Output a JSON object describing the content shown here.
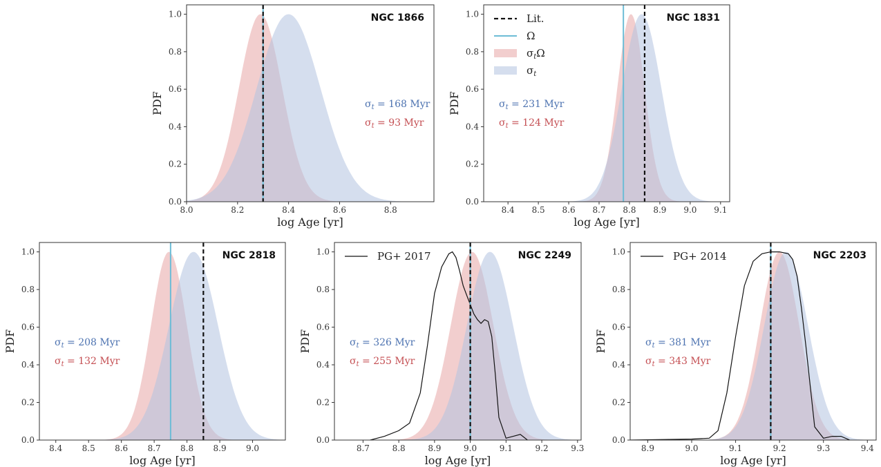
{
  "chart_data": [
    {
      "type": "area",
      "cluster": "NGC 1866",
      "xlabel": "log Age [yr]",
      "ylabel": "PDF",
      "xlim": [
        8.0,
        8.97
      ],
      "ylim": [
        0,
        1.05
      ],
      "xticks": [
        8.0,
        8.2,
        8.4,
        8.6,
        8.8
      ],
      "xtick_labels": [
        "8.0",
        "8.2",
        "8.4",
        "8.6",
        "8.8"
      ],
      "yticks": [
        0.0,
        0.2,
        0.4,
        0.6,
        0.8,
        1.0
      ],
      "ytick_labels": [
        "0.0",
        "0.2",
        "0.4",
        "0.6",
        "0.8",
        "1.0"
      ],
      "series": [
        {
          "key": "sigma_t_omega",
          "type": "gaussian",
          "mu": 8.29,
          "sigma": 0.085,
          "color": "#e8a6a6"
        },
        {
          "key": "sigma_t",
          "type": "gaussian",
          "mu": 8.4,
          "sigma": 0.125,
          "color": "#b3c3e0"
        }
      ],
      "vlines": [
        {
          "key": "omega",
          "x": 8.3,
          "color": "#6cbcd6",
          "style": "solid"
        },
        {
          "key": "lit",
          "x": 8.3,
          "color": "#111111",
          "style": "dashed"
        }
      ],
      "annotations": [
        {
          "text": "σ_t = 168 Myr",
          "color": "#4c72b0"
        },
        {
          "text": "σ_t = 93 Myr",
          "color": "#c44e52"
        }
      ]
    },
    {
      "type": "area",
      "cluster": "NGC 1831",
      "xlabel": "log Age [yr]",
      "ylabel": "PDF",
      "xlim": [
        8.32,
        9.13
      ],
      "ylim": [
        0,
        1.05
      ],
      "xticks": [
        8.4,
        8.5,
        8.6,
        8.7,
        8.8,
        8.9,
        9.0,
        9.1
      ],
      "xtick_labels": [
        "8.4",
        "8.5",
        "8.6",
        "8.7",
        "8.8",
        "8.9",
        "9.0",
        "9.1"
      ],
      "yticks": [
        0.0,
        0.2,
        0.4,
        0.6,
        0.8,
        1.0
      ],
      "ytick_labels": [
        "0.0",
        "0.2",
        "0.4",
        "0.6",
        "0.8",
        "1.0"
      ],
      "series": [
        {
          "key": "sigma_t_omega",
          "type": "gaussian",
          "mu": 8.805,
          "sigma": 0.045,
          "color": "#e8a6a6"
        },
        {
          "key": "sigma_t",
          "type": "gaussian",
          "mu": 8.84,
          "sigma": 0.065,
          "color": "#b3c3e0"
        }
      ],
      "vlines": [
        {
          "key": "omega",
          "x": 8.78,
          "color": "#6cbcd6",
          "style": "solid"
        },
        {
          "key": "lit",
          "x": 8.85,
          "color": "#111111",
          "style": "dashed"
        }
      ],
      "annotations": [
        {
          "text": "σ_t = 231 Myr",
          "color": "#4c72b0"
        },
        {
          "text": "σ_t = 124 Myr",
          "color": "#c44e52"
        }
      ],
      "legend": [
        {
          "key": "lit",
          "label": "Lit.",
          "kind": "dashed-line",
          "color": "#111111"
        },
        {
          "key": "omega",
          "label": "Ω",
          "kind": "line",
          "color": "#6cbcd6"
        },
        {
          "key": "sigma_t_omega",
          "label": "σ_tΩ",
          "kind": "patch",
          "color": "#e8a6a6"
        },
        {
          "key": "sigma_t",
          "label": "σ_t",
          "kind": "patch",
          "color": "#b3c3e0"
        }
      ],
      "legend_loc": "upper-left"
    },
    {
      "type": "area",
      "cluster": "NGC 2818",
      "xlabel": "log Age [yr]",
      "ylabel": "PDF",
      "xlim": [
        8.35,
        9.1
      ],
      "ylim": [
        0,
        1.05
      ],
      "xticks": [
        8.4,
        8.5,
        8.6,
        8.7,
        8.8,
        8.9,
        9.0
      ],
      "xtick_labels": [
        "8.4",
        "8.5",
        "8.6",
        "8.7",
        "8.8",
        "8.9",
        "9.0"
      ],
      "yticks": [
        0.0,
        0.2,
        0.4,
        0.6,
        0.8,
        1.0
      ],
      "ytick_labels": [
        "0.0",
        "0.2",
        "0.4",
        "0.6",
        "0.8",
        "1.0"
      ],
      "series": [
        {
          "key": "sigma_t_omega",
          "type": "gaussian",
          "mu": 8.745,
          "sigma": 0.055,
          "color": "#e8a6a6"
        },
        {
          "key": "sigma_t",
          "type": "gaussian",
          "mu": 8.82,
          "sigma": 0.075,
          "color": "#b3c3e0"
        }
      ],
      "vlines": [
        {
          "key": "omega",
          "x": 8.75,
          "color": "#6cbcd6",
          "style": "solid"
        },
        {
          "key": "lit",
          "x": 8.85,
          "color": "#111111",
          "style": "dashed"
        }
      ],
      "annotations": [
        {
          "text": "σ_t = 208 Myr",
          "color": "#4c72b0"
        },
        {
          "text": "σ_t = 132 Myr",
          "color": "#c44e52"
        }
      ]
    },
    {
      "type": "area",
      "cluster": "NGC 2249",
      "xlabel": "log Age [yr]",
      "ylabel": "PDF",
      "xlim": [
        8.62,
        9.31
      ],
      "ylim": [
        0,
        1.05
      ],
      "xticks": [
        8.7,
        8.8,
        8.9,
        9.0,
        9.1,
        9.2,
        9.3
      ],
      "xtick_labels": [
        "8.7",
        "8.8",
        "8.9",
        "9.0",
        "9.1",
        "9.2",
        "9.3"
      ],
      "yticks": [
        0.0,
        0.2,
        0.4,
        0.6,
        0.8,
        1.0
      ],
      "ytick_labels": [
        "0.0",
        "0.2",
        "0.4",
        "0.6",
        "0.8",
        "1.0"
      ],
      "series": [
        {
          "key": "sigma_t_omega",
          "type": "gaussian",
          "mu": 9.005,
          "sigma": 0.06,
          "color": "#e8a6a6"
        },
        {
          "key": "sigma_t",
          "type": "gaussian",
          "mu": 9.055,
          "sigma": 0.065,
          "color": "#b3c3e0"
        }
      ],
      "curve": {
        "name": "PG+ 2017",
        "x": [
          8.72,
          8.76,
          8.8,
          8.83,
          8.86,
          8.88,
          8.9,
          8.92,
          8.94,
          8.95,
          8.96,
          8.97,
          8.98,
          8.99,
          9.0,
          9.01,
          9.02,
          9.03,
          9.04,
          9.05,
          9.06,
          9.07,
          9.08,
          9.1,
          9.12,
          9.14,
          9.16
        ],
        "y": [
          0.0,
          0.02,
          0.05,
          0.09,
          0.25,
          0.5,
          0.78,
          0.92,
          0.99,
          1.0,
          0.97,
          0.9,
          0.82,
          0.77,
          0.72,
          0.67,
          0.64,
          0.62,
          0.64,
          0.63,
          0.55,
          0.35,
          0.12,
          0.01,
          0.02,
          0.03,
          0.0
        ]
      },
      "vlines": [
        {
          "key": "omega",
          "x": 9.0,
          "color": "#6cbcd6",
          "style": "solid"
        },
        {
          "key": "lit",
          "x": 9.0,
          "color": "#111111",
          "style": "dashed"
        }
      ],
      "annotations": [
        {
          "text": "σ_t = 326 Myr",
          "color": "#4c72b0"
        },
        {
          "text": "σ_t = 255 Myr",
          "color": "#c44e52"
        }
      ],
      "legend": [
        {
          "key": "pg",
          "label": "PG+ 2017",
          "kind": "thin-line",
          "color": "#111111"
        }
      ],
      "legend_loc": "upper-left"
    },
    {
      "type": "area",
      "cluster": "NGC 2203",
      "xlabel": "log Age [yr]",
      "ylabel": "PDF",
      "xlim": [
        8.86,
        9.42
      ],
      "ylim": [
        0,
        1.05
      ],
      "xticks": [
        8.9,
        9.0,
        9.1,
        9.2,
        9.3,
        9.4
      ],
      "xtick_labels": [
        "8.9",
        "9.0",
        "9.1",
        "9.2",
        "9.3",
        "9.4"
      ],
      "yticks": [
        0.0,
        0.2,
        0.4,
        0.6,
        0.8,
        1.0
      ],
      "ytick_labels": [
        "0.0",
        "0.2",
        "0.4",
        "0.6",
        "0.8",
        "1.0"
      ],
      "series": [
        {
          "key": "sigma_t_omega",
          "type": "gaussian",
          "mu": 9.2,
          "sigma": 0.045,
          "color": "#e8a6a6"
        },
        {
          "key": "sigma_t",
          "type": "gaussian",
          "mu": 9.215,
          "sigma": 0.05,
          "color": "#b3c3e0"
        }
      ],
      "curve": {
        "name": "PG+ 2014",
        "x": [
          8.86,
          9.0,
          9.04,
          9.06,
          9.08,
          9.1,
          9.12,
          9.14,
          9.16,
          9.18,
          9.2,
          9.22,
          9.23,
          9.24,
          9.25,
          9.26,
          9.28,
          9.3,
          9.32,
          9.34,
          9.36
        ],
        "y": [
          0.0,
          0.005,
          0.01,
          0.05,
          0.25,
          0.55,
          0.82,
          0.95,
          0.99,
          1.0,
          1.0,
          0.99,
          0.96,
          0.87,
          0.7,
          0.5,
          0.07,
          0.01,
          0.02,
          0.02,
          0.0
        ]
      },
      "vlines": [
        {
          "key": "omega",
          "x": 9.18,
          "color": "#6cbcd6",
          "style": "solid"
        },
        {
          "key": "lit",
          "x": 9.18,
          "color": "#111111",
          "style": "dashed"
        }
      ],
      "annotations": [
        {
          "text": "σ_t = 381 Myr",
          "color": "#4c72b0"
        },
        {
          "text": "σ_t = 343 Myr",
          "color": "#c44e52"
        }
      ],
      "legend": [
        {
          "key": "pg",
          "label": "PG+ 2014",
          "kind": "thin-line",
          "color": "#111111"
        }
      ],
      "legend_loc": "upper-left"
    }
  ]
}
